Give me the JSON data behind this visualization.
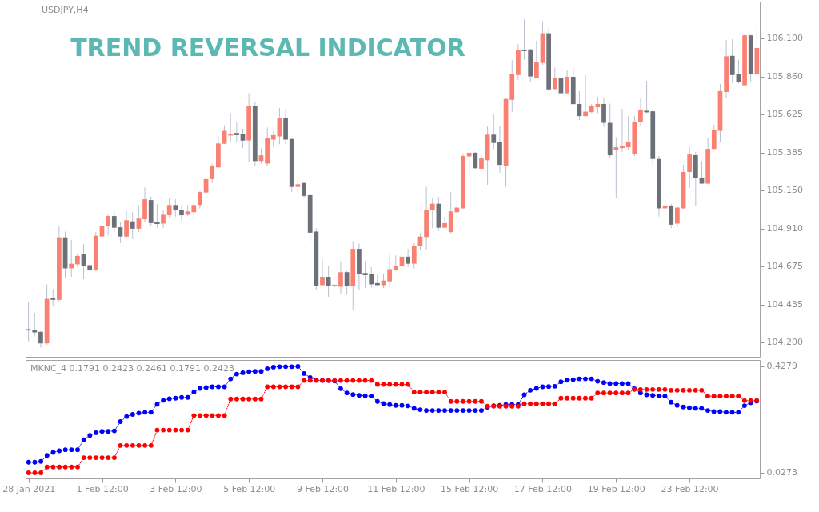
{
  "chart_data": [
    {
      "type": "candlestick",
      "title": "USDJPY,H4",
      "annotations": [
        "TREND REVERSAL INDICATOR"
      ],
      "categories": [
        "28 Jan 2021",
        null,
        null,
        null,
        null,
        null,
        null,
        null,
        null,
        null,
        null,
        null,
        "1 Feb 12:00",
        null,
        null,
        null,
        null,
        null,
        null,
        null,
        null,
        null,
        null,
        null,
        "3 Feb 12:00",
        null,
        null,
        null,
        null,
        null,
        null,
        null,
        null,
        null,
        null,
        null,
        "5 Feb 12:00",
        null,
        null,
        null,
        null,
        null,
        null,
        null,
        null,
        null,
        null,
        null,
        "9 Feb 12:00",
        null,
        null,
        null,
        null,
        null,
        null,
        null,
        null,
        null,
        null,
        null,
        "11 Feb 12:00",
        null,
        null,
        null,
        null,
        null,
        null,
        null,
        null,
        null,
        null,
        null,
        "15 Feb 12:00",
        null,
        null,
        null,
        null,
        null,
        null,
        null,
        null,
        null,
        null,
        null,
        "17 Feb 12:00",
        null,
        null,
        null,
        null,
        null,
        null,
        null,
        null,
        null,
        null,
        null,
        "19 Feb 12:00",
        null,
        null,
        null,
        null,
        null,
        null,
        null,
        null,
        null,
        null,
        null,
        "23 Feb 12:00",
        null,
        null,
        null,
        null,
        null,
        null,
        null,
        null,
        null,
        null,
        null
      ],
      "ohlc": [
        [
          104.278,
          104.451,
          104.204,
          104.275
        ],
        [
          104.276,
          104.383,
          104.236,
          104.26
        ],
        [
          104.264,
          104.27,
          104.165,
          104.192
        ],
        [
          104.192,
          104.561,
          104.184,
          104.47
        ],
        [
          104.475,
          104.532,
          104.427,
          104.464
        ],
        [
          104.464,
          104.928,
          104.451,
          104.855
        ],
        [
          104.855,
          104.891,
          104.6,
          104.661
        ],
        [
          104.661,
          104.839,
          104.608,
          104.69
        ],
        [
          104.686,
          104.755,
          104.669,
          104.739
        ],
        [
          104.749,
          104.812,
          104.593,
          104.677
        ],
        [
          104.681,
          104.685,
          104.645,
          104.648
        ],
        [
          104.648,
          104.888,
          104.645,
          104.865
        ],
        [
          104.86,
          104.968,
          104.823,
          104.928
        ],
        [
          104.925,
          104.996,
          104.867,
          104.988
        ],
        [
          104.988,
          105.025,
          104.888,
          104.915
        ],
        [
          104.918,
          104.952,
          104.818,
          104.86
        ],
        [
          104.86,
          105.02,
          104.847,
          104.962
        ],
        [
          104.955,
          105.012,
          104.844,
          104.909
        ],
        [
          104.909,
          105.057,
          104.888,
          104.972
        ],
        [
          104.968,
          105.167,
          104.952,
          105.093
        ],
        [
          105.088,
          105.11,
          104.925,
          104.944
        ],
        [
          104.947,
          105.062,
          104.915,
          104.941
        ],
        [
          104.941,
          105.025,
          104.912,
          104.996
        ],
        [
          104.993,
          105.098,
          104.98,
          105.057
        ],
        [
          105.057,
          105.093,
          104.985,
          105.028
        ],
        [
          105.028,
          105.057,
          104.96,
          104.993
        ],
        [
          104.996,
          105.057,
          104.989,
          105.017
        ],
        [
          105.012,
          105.07,
          104.963,
          105.057
        ],
        [
          105.057,
          105.145,
          105.035,
          105.138
        ],
        [
          105.135,
          105.235,
          105.125,
          105.219
        ],
        [
          105.219,
          105.316,
          105.195,
          105.3
        ],
        [
          105.292,
          105.486,
          105.284,
          105.442
        ],
        [
          105.44,
          105.555,
          105.437,
          105.521
        ],
        [
          105.494,
          105.631,
          105.449,
          105.497
        ],
        [
          105.505,
          105.575,
          105.453,
          105.497
        ],
        [
          105.499,
          105.534,
          105.413,
          105.46
        ],
        [
          105.461,
          105.757,
          105.324,
          105.675
        ],
        [
          105.675,
          105.701,
          105.3,
          105.332
        ],
        [
          105.332,
          105.41,
          105.316,
          105.368
        ],
        [
          105.316,
          105.542,
          105.3,
          105.474
        ],
        [
          105.466,
          105.518,
          105.421,
          105.494
        ],
        [
          105.486,
          105.664,
          105.437,
          105.599
        ],
        [
          105.599,
          105.656,
          105.437,
          105.466
        ],
        [
          105.47,
          105.478,
          105.138,
          105.17
        ],
        [
          105.17,
          105.235,
          105.13,
          105.187
        ],
        [
          105.195,
          105.203,
          105.098,
          105.114
        ],
        [
          105.119,
          105.122,
          104.828,
          104.884
        ],
        [
          104.891,
          104.912,
          104.524,
          104.551
        ],
        [
          104.556,
          104.718,
          104.548,
          104.608
        ],
        [
          104.608,
          104.677,
          104.483,
          104.551
        ],
        [
          104.551,
          104.56,
          104.545,
          104.556
        ],
        [
          104.546,
          104.705,
          104.503,
          104.637
        ],
        [
          104.637,
          104.645,
          104.496,
          104.551
        ],
        [
          104.551,
          104.831,
          104.398,
          104.783
        ],
        [
          104.783,
          104.815,
          104.524,
          104.624
        ],
        [
          104.629,
          104.705,
          104.54,
          104.621
        ],
        [
          104.624,
          104.669,
          104.54,
          104.561
        ],
        [
          104.569,
          104.621,
          104.551,
          104.556
        ],
        [
          104.556,
          104.629,
          104.537,
          104.585
        ],
        [
          104.58,
          104.755,
          104.54,
          104.656
        ],
        [
          104.648,
          104.742,
          104.645,
          104.677
        ],
        [
          104.673,
          104.799,
          104.645,
          104.734
        ],
        [
          104.734,
          104.783,
          104.669,
          104.69
        ],
        [
          104.69,
          104.818,
          104.661,
          104.799
        ],
        [
          104.799,
          104.88,
          104.774,
          104.86
        ],
        [
          104.857,
          105.17,
          104.774,
          105.028
        ],
        [
          105.028,
          105.103,
          104.912,
          105.065
        ],
        [
          105.065,
          105.107,
          104.896,
          104.915
        ],
        [
          104.915,
          104.985,
          104.912,
          104.944
        ],
        [
          104.888,
          105.138,
          104.88,
          105.017
        ],
        [
          105.012,
          105.093,
          104.968,
          105.041
        ],
        [
          105.036,
          105.373,
          105.033,
          105.364
        ],
        [
          105.361,
          105.389,
          105.251,
          105.384
        ],
        [
          105.384,
          105.389,
          105.284,
          105.287
        ],
        [
          105.284,
          105.364,
          105.28,
          105.348
        ],
        [
          105.337,
          105.55,
          105.183,
          105.497
        ],
        [
          105.497,
          105.626,
          105.405,
          105.445
        ],
        [
          105.449,
          105.554,
          105.259,
          105.308
        ],
        [
          105.303,
          105.728,
          105.17,
          105.72
        ],
        [
          105.715,
          105.963,
          105.639,
          105.879
        ],
        [
          105.87,
          106.063,
          105.837,
          106.024
        ],
        [
          106.026,
          106.218,
          105.966,
          106.022
        ],
        [
          106.03,
          106.033,
          105.825,
          105.861
        ],
        [
          105.854,
          106.084,
          105.849,
          105.951
        ],
        [
          105.946,
          106.205,
          105.933,
          106.131
        ],
        [
          106.131,
          106.165,
          105.765,
          105.78
        ],
        [
          105.782,
          105.917,
          105.777,
          105.85
        ],
        [
          105.854,
          105.901,
          105.688,
          105.756
        ],
        [
          105.756,
          105.901,
          105.752,
          105.859
        ],
        [
          105.859,
          105.917,
          105.685,
          105.688
        ],
        [
          105.689,
          105.769,
          105.588,
          105.613
        ],
        [
          105.613,
          105.869,
          105.61,
          105.641
        ],
        [
          105.638,
          105.69,
          105.631,
          105.675
        ],
        [
          105.668,
          105.733,
          105.631,
          105.689
        ],
        [
          105.689,
          105.723,
          105.545,
          105.571
        ],
        [
          105.571,
          105.691,
          105.348,
          105.368
        ],
        [
          105.402,
          105.481,
          105.1,
          105.418
        ],
        [
          105.413,
          105.659,
          105.389,
          105.424
        ],
        [
          105.418,
          105.615,
          105.4,
          105.453
        ],
        [
          105.376,
          105.615,
          105.364,
          105.579
        ],
        [
          105.575,
          105.728,
          105.55,
          105.651
        ],
        [
          105.644,
          105.833,
          105.631,
          105.639
        ],
        [
          105.643,
          105.659,
          105.3,
          105.345
        ],
        [
          105.345,
          105.364,
          104.985,
          105.036
        ],
        [
          105.036,
          105.09,
          104.977,
          105.054
        ],
        [
          105.054,
          105.065,
          104.912,
          104.934
        ],
        [
          104.941,
          105.049,
          104.918,
          105.041
        ],
        [
          105.036,
          105.308,
          105.033,
          105.264
        ],
        [
          105.264,
          105.421,
          105.162,
          105.373
        ],
        [
          105.369,
          105.389,
          105.052,
          105.225
        ],
        [
          105.229,
          105.332,
          105.187,
          105.191
        ],
        [
          105.191,
          105.478,
          105.187,
          105.408
        ],
        [
          105.408,
          105.558,
          105.405,
          105.526
        ],
        [
          105.521,
          105.814,
          105.453,
          105.769
        ],
        [
          105.764,
          106.089,
          105.728,
          105.987
        ],
        [
          105.99,
          106.095,
          105.817,
          105.87
        ],
        [
          105.874,
          105.966,
          105.817,
          105.825
        ],
        [
          105.806,
          106.127,
          105.806,
          106.118
        ],
        [
          106.118,
          106.124,
          105.83,
          105.874
        ],
        [
          105.874,
          106.16,
          105.869,
          106.039
        ]
      ],
      "colors": [
        "#6b7079",
        "#6b7079",
        "#6b7079",
        "#fa8072",
        "#6b7079",
        "#fa8072",
        "#6b7079",
        "#fa8072",
        "#fa8072",
        "#6b7079",
        "#6b7079",
        "#fa8072",
        "#fa8072",
        "#fa8072",
        "#6b7079",
        "#6b7079",
        "#fa8072",
        "#6b7079",
        "#fa8072",
        "#fa8072",
        "#6b7079",
        "#6b7079",
        "#fa8072",
        "#fa8072",
        "#6b7079",
        "#6b7079",
        "#fa8072",
        "#fa8072",
        "#fa8072",
        "#fa8072",
        "#fa8072",
        "#fa8072",
        "#fa8072",
        "#fa8072",
        "#6b7079",
        "#6b7079",
        "#fa8072",
        "#6b7079",
        "#fa8072",
        "#fa8072",
        "#fa8072",
        "#fa8072",
        "#6b7079",
        "#6b7079",
        "#fa8072",
        "#6b7079",
        "#6b7079",
        "#6b7079",
        "#fa8072",
        "#6b7079",
        "#fa8072",
        "#fa8072",
        "#6b7079",
        "#fa8072",
        "#6b7079",
        "#6b7079",
        "#6b7079",
        "#6b7079",
        "#fa8072",
        "#fa8072",
        "#fa8072",
        "#fa8072",
        "#6b7079",
        "#fa8072",
        "#fa8072",
        "#fa8072",
        "#fa8072",
        "#6b7079",
        "#fa8072",
        "#fa8072",
        "#fa8072",
        "#fa8072",
        "#fa8072",
        "#6b7079",
        "#fa8072",
        "#fa8072",
        "#6b7079",
        "#6b7079",
        "#fa8072",
        "#fa8072",
        "#fa8072",
        "#6b7079",
        "#6b7079",
        "#fa8072",
        "#fa8072",
        "#6b7079",
        "#fa8072",
        "#6b7079",
        "#fa8072",
        "#6b7079",
        "#6b7079",
        "#fa8072",
        "#fa8072",
        "#fa8072",
        "#6b7079",
        "#6b7079",
        "#fa8072",
        "#fa8072",
        "#fa8072",
        "#fa8072",
        "#fa8072",
        "#6b7079",
        "#6b7079",
        "#6b7079",
        "#fa8072",
        "#6b7079",
        "#fa8072",
        "#fa8072",
        "#fa8072",
        "#6b7079",
        "#6b7079",
        "#fa8072",
        "#fa8072",
        "#fa8072",
        "#fa8072",
        "#6b7079",
        "#6b7079",
        "#fa8072",
        "#6b7079",
        "#fa8072"
      ],
      "ylim": [
        104.108,
        106.329
      ],
      "yticks": [
        {
          "value": 104.2,
          "label": "104.200"
        },
        {
          "value": 104.435,
          "label": "104.435"
        },
        {
          "value": 104.675,
          "label": "104.675"
        },
        {
          "value": 104.91,
          "label": "104.910"
        },
        {
          "value": 105.15,
          "label": "105.150"
        },
        {
          "value": 105.385,
          "label": "105.385"
        },
        {
          "value": 105.625,
          "label": "105.625"
        },
        {
          "value": 105.86,
          "label": "105.860"
        },
        {
          "value": 106.1,
          "label": "106.100"
        }
      ],
      "tick_labels": "y"
    },
    {
      "type": "line",
      "title": "MKNC_4 0.1791 0.2423 0.2461 0.1791 0.2423",
      "categories": [
        "28 Jan 2021",
        null,
        null,
        null,
        null,
        null,
        null,
        null,
        null,
        null,
        null,
        null,
        "1 Feb 12:00",
        null,
        null,
        null,
        null,
        null,
        null,
        null,
        null,
        null,
        null,
        null,
        "3 Feb 12:00",
        null,
        null,
        null,
        null,
        null,
        null,
        null,
        null,
        null,
        null,
        null,
        "5 Feb 12:00",
        null,
        null,
        null,
        null,
        null,
        null,
        null,
        null,
        null,
        null,
        null,
        "9 Feb 12:00",
        null,
        null,
        null,
        null,
        null,
        null,
        null,
        null,
        null,
        null,
        null,
        "11 Feb 12:00",
        null,
        null,
        null,
        null,
        null,
        null,
        null,
        null,
        null,
        null,
        null,
        "15 Feb 12:00",
        null,
        null,
        null,
        null,
        null,
        null,
        null,
        null,
        null,
        null,
        null,
        "17 Feb 12:00",
        null,
        null,
        null,
        null,
        null,
        null,
        null,
        null,
        null,
        null,
        null,
        "19 Feb 12:00",
        null,
        null,
        null,
        null,
        null,
        null,
        null,
        null,
        null,
        null,
        null,
        "23 Feb 12:00",
        null,
        null,
        null,
        null,
        null,
        null,
        null,
        null,
        null,
        null,
        null
      ],
      "series": [
        {
          "color": "#0000ff",
          "values": [
            0.067,
            0.067,
            0.07,
            0.093,
            0.104,
            0.11,
            0.114,
            0.114,
            0.114,
            0.152,
            0.168,
            0.178,
            0.183,
            0.183,
            0.185,
            0.22,
            0.239,
            0.247,
            0.252,
            0.255,
            0.255,
            0.285,
            0.3,
            0.306,
            0.308,
            0.311,
            0.311,
            0.331,
            0.345,
            0.348,
            0.351,
            0.351,
            0.351,
            0.381,
            0.399,
            0.404,
            0.408,
            0.409,
            0.409,
            0.419,
            0.425,
            0.427,
            0.427,
            0.427,
            0.428,
            0.401,
            0.386,
            0.377,
            0.375,
            0.375,
            0.373,
            0.344,
            0.328,
            0.322,
            0.319,
            0.317,
            0.316,
            0.296,
            0.288,
            0.284,
            0.281,
            0.281,
            0.279,
            0.27,
            0.265,
            0.262,
            0.262,
            0.262,
            0.262,
            0.262,
            0.262,
            0.262,
            0.262,
            0.262,
            0.262,
            0.274,
            0.28,
            0.281,
            0.284,
            0.284,
            0.284,
            0.321,
            0.338,
            0.345,
            0.351,
            0.352,
            0.353,
            0.37,
            0.376,
            0.378,
            0.381,
            0.381,
            0.381,
            0.372,
            0.367,
            0.363,
            0.363,
            0.363,
            0.363,
            0.344,
            0.328,
            0.321,
            0.319,
            0.317,
            0.316,
            0.293,
            0.281,
            0.275,
            0.272,
            0.27,
            0.27,
            0.262,
            0.258,
            0.258,
            0.255,
            0.255,
            0.255,
            0.28,
            0.291,
            0.297
          ]
        },
        {
          "color": "#ff0000",
          "values": [
            0.027,
            0.027,
            0.027,
            0.049,
            0.049,
            0.049,
            0.049,
            0.049,
            0.049,
            0.084,
            0.084,
            0.084,
            0.084,
            0.084,
            0.084,
            0.13,
            0.13,
            0.13,
            0.13,
            0.13,
            0.13,
            0.188,
            0.188,
            0.188,
            0.188,
            0.188,
            0.188,
            0.243,
            0.243,
            0.243,
            0.243,
            0.243,
            0.243,
            0.305,
            0.305,
            0.305,
            0.305,
            0.305,
            0.305,
            0.351,
            0.351,
            0.351,
            0.351,
            0.351,
            0.351,
            0.375,
            0.375,
            0.375,
            0.375,
            0.375,
            0.375,
            0.375,
            0.375,
            0.375,
            0.375,
            0.375,
            0.375,
            0.36,
            0.36,
            0.36,
            0.36,
            0.36,
            0.36,
            0.331,
            0.331,
            0.331,
            0.331,
            0.331,
            0.331,
            0.296,
            0.296,
            0.296,
            0.296,
            0.296,
            0.296,
            0.278,
            0.278,
            0.278,
            0.278,
            0.278,
            0.278,
            0.287,
            0.287,
            0.287,
            0.287,
            0.287,
            0.287,
            0.308,
            0.308,
            0.308,
            0.308,
            0.308,
            0.308,
            0.328,
            0.328,
            0.328,
            0.328,
            0.328,
            0.328,
            0.341,
            0.341,
            0.341,
            0.341,
            0.341,
            0.341,
            0.338,
            0.338,
            0.338,
            0.338,
            0.338,
            0.338,
            0.316,
            0.316,
            0.316,
            0.316,
            0.316,
            0.316,
            0.299,
            0.299,
            0.299
          ]
        }
      ],
      "ylim": [
        0.006,
        0.452
      ],
      "yticks": [
        0.0273,
        0.4279
      ],
      "marker": "circle",
      "line_style": "dotted"
    }
  ]
}
